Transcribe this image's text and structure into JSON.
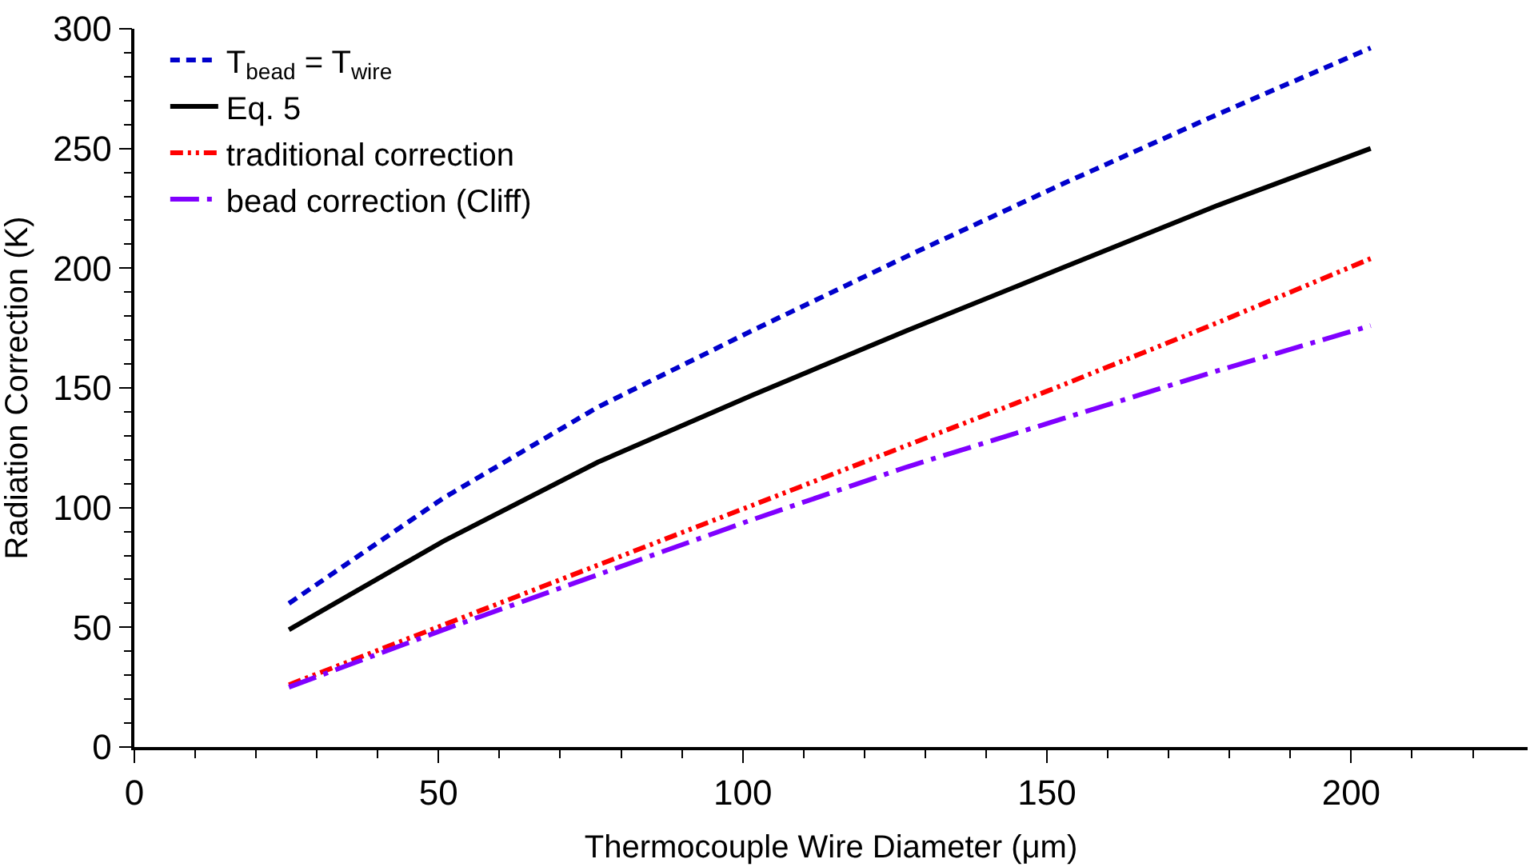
{
  "chart_data": {
    "type": "line",
    "xlabel": "Thermocouple Wire Diameter (μm)",
    "ylabel": "Radiation Correction (K)",
    "x": [
      25.4,
      50.8,
      76.2,
      101.6,
      127,
      152.4,
      177.8,
      203.2
    ],
    "xlim": [
      0,
      229
    ],
    "xticks": [
      0,
      50,
      100,
      150,
      200
    ],
    "ylim": [
      0,
      300
    ],
    "yticks": [
      0,
      50,
      100,
      150,
      200,
      250,
      300
    ],
    "legend": "top left",
    "marker": "none",
    "series": [
      {
        "name": "T$_{bead}$ = T$_{wire}$",
        "color": "#0000cc",
        "line_style": "dashed",
        "values": [
          60,
          104,
          142,
          174,
          205,
          235,
          264,
          292
        ]
      },
      {
        "name": "Eq. 5",
        "color": "#000000",
        "line_style": "solid",
        "values": [
          49,
          86,
          119,
          147,
          174,
          200,
          226,
          250
        ]
      },
      {
        "name": "traditional correction",
        "color": "#ff0000",
        "line_style": "dashed",
        "values": [
          26,
          51,
          76,
          101,
          126,
          151,
          177,
          204
        ]
      },
      {
        "name": "bead correction (Cliff)",
        "color": "#8000ff",
        "line_style": "dashed",
        "values": [
          25,
          49,
          72,
          95,
          117,
          137,
          157,
          176
        ]
      }
    ]
  }
}
